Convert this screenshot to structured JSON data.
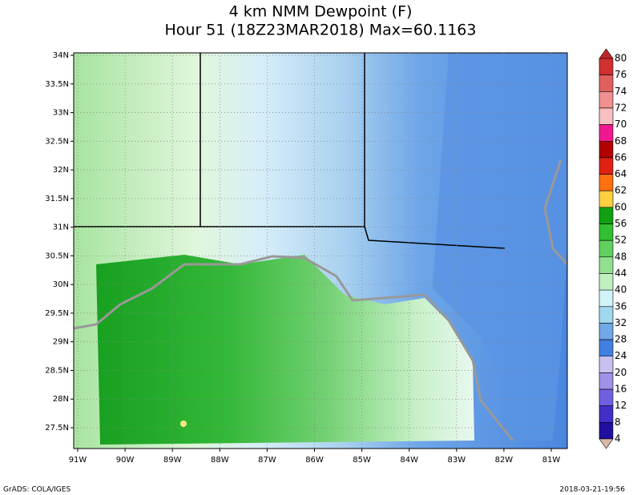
{
  "title": {
    "line1": "4 km NMM Dewpoint (F)",
    "line2": "Hour 51 (18Z23MAR2018) Max=60.1163"
  },
  "map": {
    "lat_labels": [
      "34N",
      "33.5N",
      "33N",
      "32.5N",
      "32N",
      "31.5N",
      "31N",
      "30.5N",
      "30N",
      "29.5N",
      "29N",
      "28.5N",
      "28N",
      "27.5N"
    ],
    "lon_labels": [
      "91W",
      "90W",
      "89W",
      "88W",
      "87W",
      "86W",
      "85W",
      "84W",
      "83W",
      "82W",
      "81W"
    ]
  },
  "colorbar": {
    "labels": [
      "80",
      "76",
      "74",
      "72",
      "70",
      "68",
      "66",
      "64",
      "62",
      "60",
      "56",
      "52",
      "48",
      "44",
      "40",
      "36",
      "32",
      "28",
      "24",
      "20",
      "16",
      "12",
      "8",
      "4"
    ],
    "colors": [
      "#c02828",
      "#d03030",
      "#e06060",
      "#f09090",
      "#f8c0c0",
      "#f01890",
      "#b00000",
      "#e02010",
      "#ff7010",
      "#ffd040",
      "#10a010",
      "#30c030",
      "#60d060",
      "#90e090",
      "#c0f0c0",
      "#d0f4f8",
      "#a0d8f0",
      "#70a8e8",
      "#4080e0",
      "#c8c0f0",
      "#a090e8",
      "#7060e0",
      "#4030c8",
      "#2010a0",
      "#d8b8a8"
    ]
  },
  "footer": {
    "left": "GrADS: COLA/IGES",
    "right": "2018-03-21-19:56"
  }
}
